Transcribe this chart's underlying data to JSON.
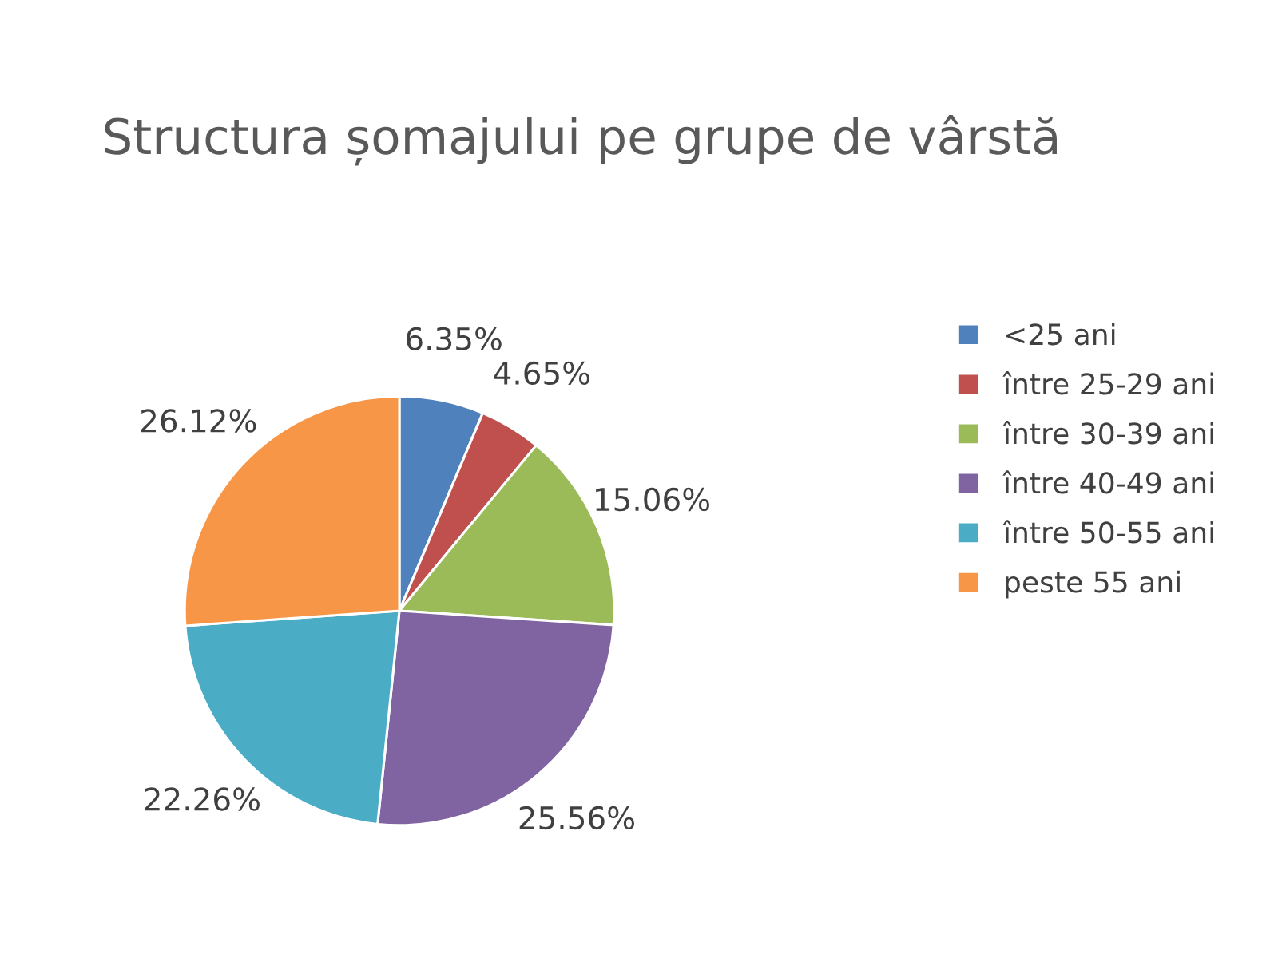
{
  "chart_data": {
    "type": "pie",
    "title": "Structura șomajului pe grupe de vârstă",
    "categories": [
      "<25 ani",
      "între 25-29 ani",
      "între 30-39 ani",
      "între 40-49 ani",
      "între 50-55 ani",
      "peste 55 ani"
    ],
    "values": [
      6.35,
      4.65,
      15.06,
      25.56,
      22.26,
      26.12
    ],
    "value_labels": [
      "6.35%",
      "4.65%",
      "15.06%",
      "25.56%",
      "22.26%",
      "26.12%"
    ],
    "colors": [
      "#4f81bd",
      "#c0504d",
      "#9bbb59",
      "#8064a2",
      "#4bacc6",
      "#f79646"
    ],
    "legend": "right"
  }
}
